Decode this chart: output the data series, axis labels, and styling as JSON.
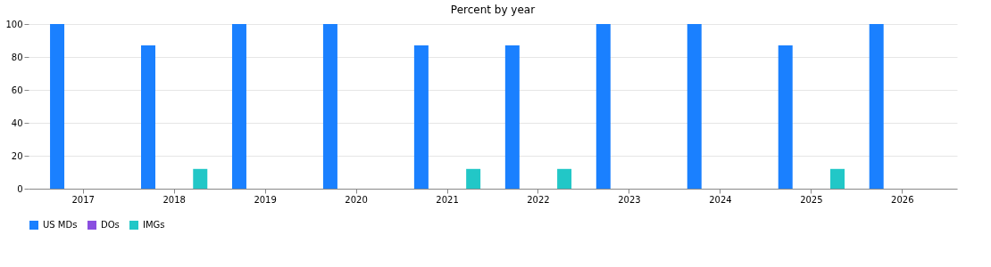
{
  "chart_data": {
    "type": "bar",
    "title": "Percent by year",
    "categories": [
      "2017",
      "2018",
      "2019",
      "2020",
      "2021",
      "2022",
      "2023",
      "2024",
      "2025",
      "2026"
    ],
    "series": [
      {
        "name": "US MDs",
        "color": "#1a80ff",
        "values": [
          100,
          87,
          100,
          100,
          87,
          87,
          100,
          100,
          87,
          100
        ]
      },
      {
        "name": "DOs",
        "color": "#8a4fe0",
        "values": [
          0,
          0,
          0,
          0,
          0,
          0,
          0,
          0,
          0,
          0
        ]
      },
      {
        "name": "IMGs",
        "color": "#22c7c7",
        "values": [
          0,
          12,
          0,
          0,
          12,
          12,
          0,
          0,
          12,
          0
        ]
      }
    ],
    "ylim": [
      0,
      100
    ],
    "yticks": [
      0,
      20,
      40,
      60,
      80,
      100
    ],
    "grid": "y",
    "legend": "bottom"
  }
}
